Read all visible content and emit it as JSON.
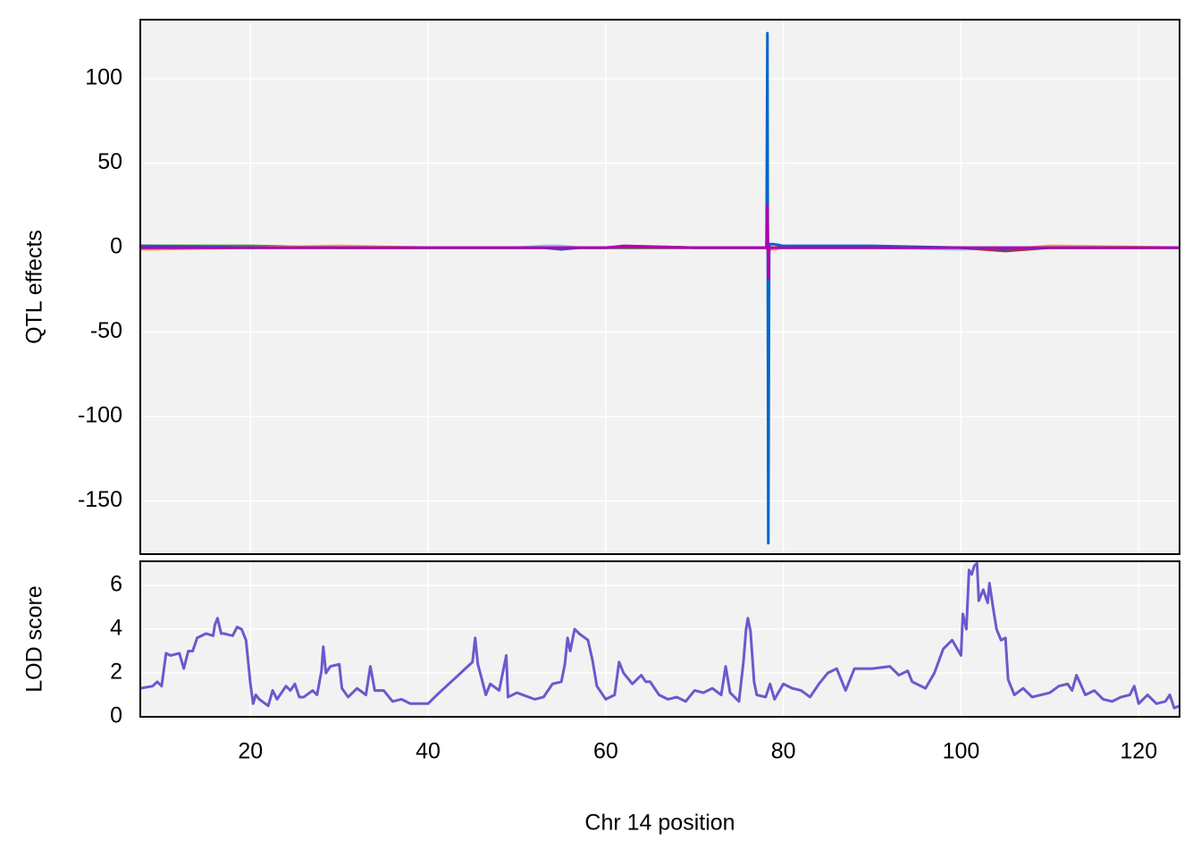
{
  "chart_data": [
    {
      "type": "line",
      "ylabel": "QTL effects",
      "x": [
        7.6,
        20,
        30,
        40,
        50,
        53,
        55,
        57,
        60,
        62,
        70,
        78.1,
        78.2,
        78.3,
        78.4,
        79,
        80,
        85,
        90,
        100,
        105,
        110,
        124.6
      ],
      "series": [
        {
          "color": "#33a02c",
          "values": [
            1,
            1,
            0,
            0,
            0,
            0,
            0,
            0,
            0,
            0,
            0,
            0,
            5,
            -5,
            0,
            0,
            0,
            0,
            0,
            0,
            0,
            0,
            0
          ]
        },
        {
          "color": "#ff9933",
          "values": [
            -1,
            0,
            1,
            0,
            0,
            0,
            0,
            0,
            0,
            0,
            0,
            0,
            3,
            -4,
            -1,
            -1,
            0,
            0,
            0,
            0,
            -1,
            1,
            0
          ]
        },
        {
          "color": "#88ccee",
          "values": [
            0,
            0,
            0,
            0,
            0,
            1,
            1,
            0,
            0,
            0,
            0,
            0,
            8,
            -10,
            0,
            0,
            0,
            0,
            0,
            -1,
            0,
            0,
            0
          ]
        },
        {
          "color": "#e31a1c",
          "values": [
            0,
            0,
            0,
            0,
            0,
            0,
            0,
            0,
            0,
            0,
            0,
            0,
            2,
            -3,
            0,
            0,
            0,
            0,
            0,
            0,
            -2,
            0,
            0
          ]
        },
        {
          "color": "#0066cc",
          "values": [
            1,
            0,
            0,
            0,
            0,
            0,
            -1,
            0,
            0,
            0.5,
            0,
            0,
            127,
            -175,
            2,
            2,
            1,
            1,
            1,
            0,
            -1,
            0,
            0
          ]
        },
        {
          "color": "#b000b0",
          "values": [
            0,
            0,
            0,
            0,
            0,
            0,
            0,
            0,
            0,
            1,
            0,
            0,
            25,
            -18,
            0,
            0,
            0,
            0,
            0,
            0,
            0,
            0,
            0
          ]
        }
      ],
      "xlim": [
        7.6,
        124.6
      ],
      "xticks": [
        20,
        40,
        60,
        80,
        100,
        120
      ],
      "ylim": [
        -181.5,
        135
      ],
      "yticks": [
        -150,
        -100,
        -50,
        0,
        50,
        100
      ],
      "grid": true
    },
    {
      "type": "line",
      "ylabel": "LOD score",
      "xlabel": "Chr 14 position",
      "x": [
        7.6,
        9,
        9.5,
        10,
        10.5,
        11,
        12,
        12.5,
        13,
        13.5,
        14,
        15,
        15.8,
        16,
        16.3,
        16.7,
        17,
        18,
        18.5,
        19,
        19.5,
        20,
        20.3,
        20.6,
        21,
        22,
        22.5,
        23,
        24,
        24.5,
        25,
        25.5,
        26,
        27,
        27.5,
        28,
        28.2,
        28.5,
        29,
        30,
        30.3,
        31,
        32,
        33,
        33.5,
        34,
        35,
        36,
        37,
        38,
        40,
        41,
        45,
        45.3,
        45.6,
        46,
        46.5,
        47,
        48,
        48.8,
        49,
        50,
        52,
        53,
        54,
        55,
        55.4,
        55.7,
        56,
        56.5,
        57,
        58,
        58.5,
        59,
        60,
        61,
        61.5,
        62,
        63,
        64,
        64.5,
        65,
        66,
        67,
        68,
        69,
        70,
        71,
        72,
        73,
        73.5,
        74,
        75,
        75.5,
        75.8,
        76,
        76.3,
        76.7,
        77,
        78,
        78.5,
        79,
        80,
        81,
        82,
        83,
        84,
        85,
        86,
        87,
        88,
        90,
        92,
        93,
        94,
        94.5,
        95,
        96,
        97,
        98,
        99,
        100,
        100.2,
        100.6,
        100.9,
        101.2,
        101.5,
        101.8,
        102,
        102.5,
        103,
        103.2,
        103.6,
        104,
        104.5,
        105,
        105.3,
        106,
        107,
        108,
        110,
        111,
        112,
        112.5,
        113,
        114,
        115,
        116,
        117,
        118,
        119,
        119.5,
        120,
        121,
        122,
        123,
        123.5,
        124,
        124.6
      ],
      "series": [
        {
          "color": "#6a5acd",
          "values": [
            1.3,
            1.4,
            1.6,
            1.4,
            2.9,
            2.8,
            2.9,
            2.2,
            3.0,
            3.0,
            3.6,
            3.8,
            3.7,
            4.2,
            4.5,
            3.8,
            3.8,
            3.7,
            4.1,
            4.0,
            3.5,
            1.5,
            0.6,
            1.0,
            0.8,
            0.5,
            1.2,
            0.8,
            1.4,
            1.2,
            1.5,
            0.9,
            0.9,
            1.2,
            1.0,
            2.1,
            3.2,
            2.0,
            2.3,
            2.4,
            1.3,
            0.9,
            1.3,
            1.0,
            2.3,
            1.2,
            1.2,
            0.7,
            0.8,
            0.6,
            0.6,
            1.0,
            2.5,
            3.6,
            2.4,
            1.8,
            1.0,
            1.5,
            1.2,
            2.8,
            0.9,
            1.1,
            0.8,
            0.9,
            1.5,
            1.6,
            2.4,
            3.6,
            3.0,
            4.0,
            3.8,
            3.5,
            2.6,
            1.4,
            0.8,
            1.0,
            2.5,
            2.0,
            1.5,
            1.9,
            1.6,
            1.6,
            1.0,
            0.8,
            0.9,
            0.7,
            1.2,
            1.1,
            1.3,
            1.0,
            2.3,
            1.1,
            0.7,
            2.5,
            4.0,
            4.5,
            3.9,
            1.6,
            1.0,
            0.9,
            1.5,
            0.8,
            1.5,
            1.3,
            1.2,
            0.9,
            1.5,
            2.0,
            2.2,
            1.2,
            2.2,
            2.2,
            2.3,
            1.9,
            2.1,
            1.6,
            1.5,
            1.3,
            2.0,
            3.1,
            3.5,
            2.8,
            4.7,
            4.0,
            6.7,
            6.5,
            6.9,
            7.0,
            5.3,
            5.8,
            5.2,
            6.1,
            5.0,
            4.0,
            3.5,
            3.6,
            1.7,
            1.0,
            1.3,
            0.9,
            1.1,
            1.4,
            1.5,
            1.2,
            1.9,
            1.0,
            1.2,
            0.8,
            0.7,
            0.9,
            1.0,
            1.4,
            0.6,
            1.0,
            0.6,
            0.7,
            1.0,
            0.4,
            0.5
          ]
        }
      ],
      "xlim": [
        7.6,
        124.6
      ],
      "xticks": [
        20,
        40,
        60,
        80,
        100,
        120
      ],
      "ylim": [
        0,
        7.1
      ],
      "yticks": [
        0,
        2,
        4,
        6
      ],
      "grid": true
    }
  ]
}
